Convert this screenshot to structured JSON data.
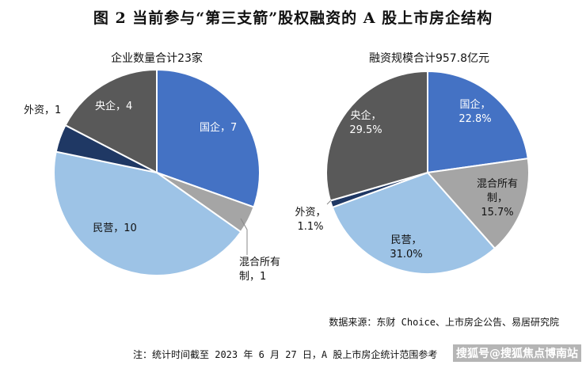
{
  "title": "图 2   当前参与“第三支箭”股权融资的 A 股上市房企结构",
  "source": "数据来源：东财 Choice、上市房企公告、易居研究院",
  "note": "注：统计时间截至 2023 年 6 月 27 日，A 股上市房企统计范围参考",
  "watermark": "搜狐号@搜狐焦点博南站",
  "chart_data": [
    {
      "type": "pie",
      "title": "企业数量合计23家",
      "slices": [
        {
          "name": "国企",
          "value": 7,
          "label": "国企，7",
          "color": "#4472C4"
        },
        {
          "name": "混合所有制",
          "value": 1,
          "label": "混合所有制，1",
          "color": "#A5A5A5"
        },
        {
          "name": "民营",
          "value": 10,
          "label": "民营，10",
          "color": "#9DC3E6"
        },
        {
          "name": "外资",
          "value": 1,
          "label": "外资，1",
          "color": "#1F3864"
        },
        {
          "name": "央企",
          "value": 4,
          "label": "央企，4",
          "color": "#595959"
        }
      ]
    },
    {
      "type": "pie",
      "title": "融资规模合计957.8亿元",
      "slices": [
        {
          "name": "国企",
          "value": 22.8,
          "label": "国企，22.8%",
          "color": "#4472C4"
        },
        {
          "name": "混合所有制",
          "value": 15.7,
          "label": "混合所有制，15.7%",
          "color": "#A5A5A5"
        },
        {
          "name": "民营",
          "value": 31.0,
          "label": "民营，31.0%",
          "color": "#9DC3E6"
        },
        {
          "name": "外资",
          "value": 1.1,
          "label": "外资，1.1%",
          "color": "#1F3864"
        },
        {
          "name": "央企",
          "value": 29.5,
          "label": "央企，29.5%",
          "color": "#595959"
        }
      ]
    }
  ]
}
